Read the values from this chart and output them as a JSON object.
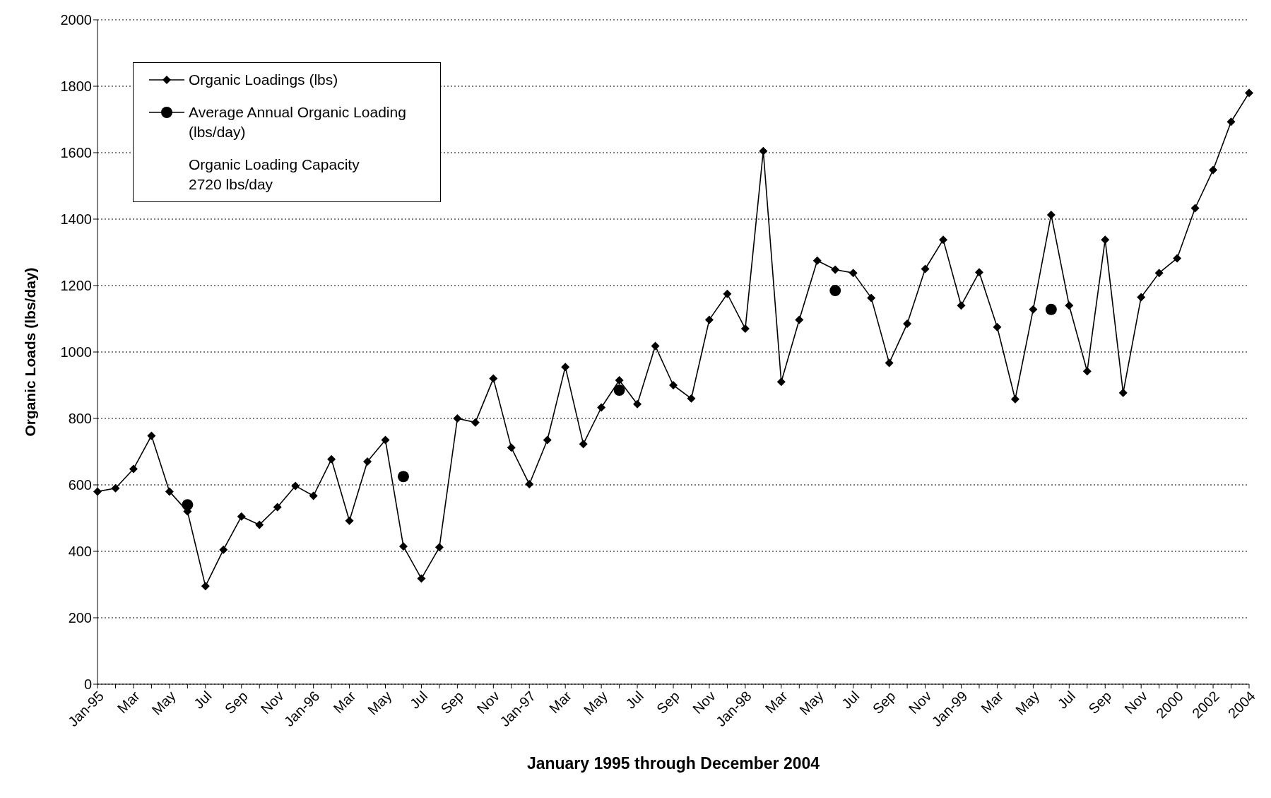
{
  "chart_data": {
    "type": "line",
    "xlabel": "January 1995 through December 2004",
    "ylabel": "Organic Loads (lbs/day)",
    "categories": [
      "Jan-95",
      null,
      "Mar",
      null,
      "May",
      null,
      "Jul",
      null,
      "Sep",
      null,
      "Nov",
      null,
      "Jan-96",
      null,
      "Mar",
      null,
      "May",
      null,
      "Jul",
      null,
      "Sep",
      null,
      "Nov",
      null,
      "Jan-97",
      null,
      "Mar",
      null,
      "May",
      null,
      "Jul",
      null,
      "Sep",
      null,
      "Nov",
      null,
      "Jan-98",
      null,
      "Mar",
      null,
      "May",
      null,
      "Jul",
      null,
      "Sep",
      null,
      "Nov",
      null,
      "Jan-99",
      null,
      "Mar",
      null,
      "May",
      null,
      "Jul",
      null,
      "Sep",
      null,
      "Nov",
      null,
      "2000",
      null,
      "2002",
      null,
      "2004"
    ],
    "series": [
      {
        "name": "Organic Loadings (lbs)",
        "color": "#000000",
        "marker": "diamond",
        "values": [
          580,
          590,
          648,
          748,
          580,
          520,
          295,
          405,
          505,
          480,
          533,
          597,
          567,
          677,
          492,
          670,
          735,
          415,
          318,
          412,
          800,
          788,
          920,
          712,
          602,
          735,
          955,
          723,
          833,
          915,
          843,
          1018,
          900,
          860,
          1097,
          1175,
          1070,
          1605,
          910,
          1097,
          1275,
          1248,
          1238,
          1163,
          967,
          1085,
          1250,
          1338,
          1140,
          1240,
          1075,
          858,
          1128,
          1413,
          1140,
          942,
          1338,
          877,
          1165,
          1238,
          1282,
          1433,
          1548,
          1693,
          1780
        ]
      },
      {
        "name": "Average Annual Organic Loading (lbs/day)",
        "color": "#000000",
        "marker": "circle",
        "values": [
          null,
          null,
          null,
          null,
          null,
          540,
          null,
          null,
          null,
          null,
          null,
          null,
          null,
          null,
          null,
          null,
          null,
          625,
          null,
          null,
          null,
          null,
          null,
          null,
          null,
          null,
          null,
          null,
          null,
          885,
          null,
          null,
          null,
          null,
          null,
          null,
          null,
          null,
          null,
          null,
          null,
          1185,
          null,
          null,
          null,
          null,
          null,
          null,
          null,
          null,
          null,
          null,
          null,
          1128,
          null,
          null,
          null,
          null,
          null,
          null,
          null,
          null,
          null,
          null,
          null
        ]
      }
    ],
    "annotations": [
      "Organic Loading Capacity\n2720 lbs/day"
    ],
    "ylim": [
      0,
      2000
    ],
    "yticks": [
      0,
      200,
      400,
      600,
      800,
      1000,
      1200,
      1400,
      1600,
      1800,
      2000
    ],
    "grid": "y",
    "legend": "top left",
    "line_style": "solid"
  }
}
